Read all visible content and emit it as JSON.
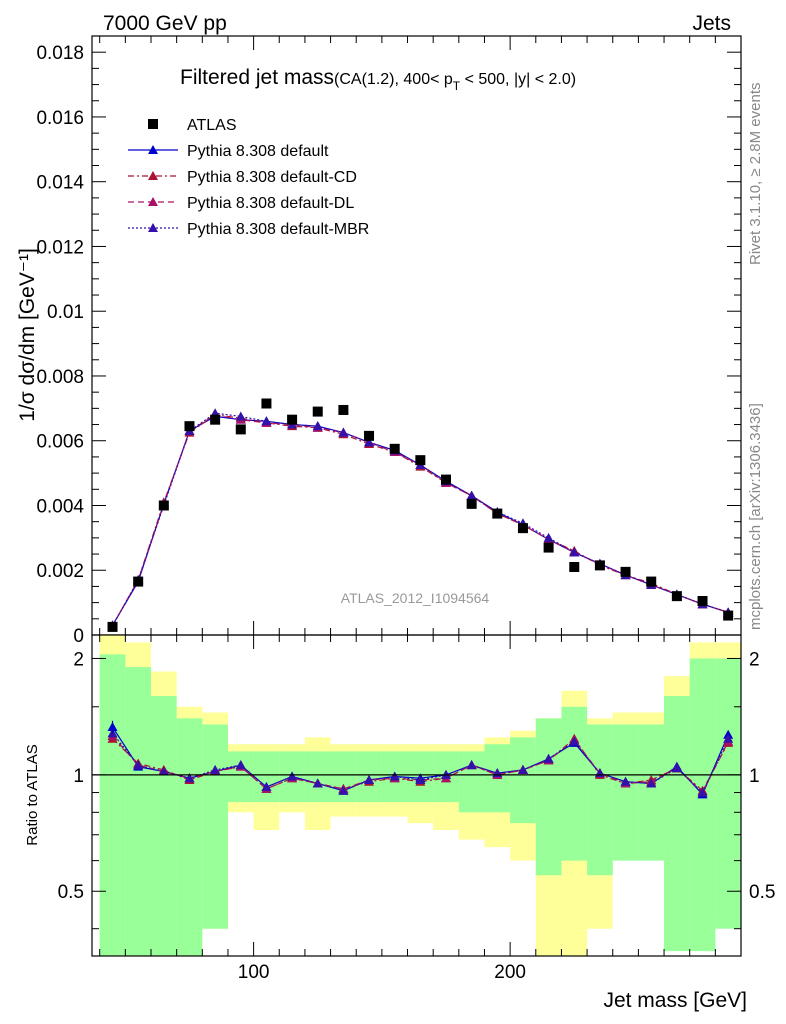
{
  "header": {
    "left_label": "7000 GeV pp",
    "right_label": "Jets"
  },
  "side_labels": {
    "rivet": "Rivet 3.1.10, ≥ 2.8M events",
    "mcplots": "mcplots.cern.ch [arXiv:1306.3436]"
  },
  "chart_data": [
    {
      "type": "scatter",
      "panel": "main",
      "title_main": "Filtered jet mass",
      "title_sub": "(CA(1.2), 400< p",
      "title_sub_index": "T",
      "title_sub_tail": " < 500, |y| < 2.0)",
      "ylabel": "1/σ dσ/dm [GeV⁻¹]",
      "xlabel": "Jet mass [GeV]",
      "watermark": "ATLAS_2012_I1094564",
      "xlim": [
        37,
        290
      ],
      "ylim": [
        0,
        0.0185
      ],
      "x_ticks": [
        100,
        200
      ],
      "y_ticks": [
        0,
        0.002,
        0.004,
        0.006,
        0.008,
        0.01,
        0.012,
        0.014,
        0.016,
        0.018
      ],
      "y_tick_labels": [
        "0",
        "0.002",
        "0.004",
        "0.006",
        "0.008",
        "0.01",
        "0.012",
        "0.014",
        "0.016",
        "0.018"
      ],
      "legend_placement": "top-left",
      "x": [
        45,
        55,
        65,
        75,
        85,
        95,
        105,
        115,
        125,
        135,
        145,
        155,
        165,
        175,
        185,
        195,
        205,
        215,
        225,
        235,
        245,
        255,
        265,
        275,
        285
      ],
      "series": [
        {
          "name": "ATLAS",
          "style": "data",
          "color": "#000000",
          "values": [
            0.00025,
            0.00165,
            0.004,
            0.00645,
            0.00665,
            0.00635,
            0.00715,
            0.00665,
            0.0069,
            0.00695,
            0.00615,
            0.00575,
            0.0054,
            0.0048,
            0.00405,
            0.00375,
            0.0033,
            0.0027,
            0.0021,
            0.00215,
            0.00195,
            0.00165,
            0.0012,
            0.00105,
            0.0006
          ]
        },
        {
          "name": "Pythia 8.308 default",
          "style": "solid",
          "color": "#0000cc",
          "values": [
            0.0003,
            0.00165,
            0.00405,
            0.0063,
            0.00675,
            0.00665,
            0.0066,
            0.0065,
            0.00645,
            0.00625,
            0.00595,
            0.0057,
            0.00525,
            0.00475,
            0.0043,
            0.0038,
            0.0034,
            0.00295,
            0.00255,
            0.0022,
            0.00185,
            0.00155,
            0.00125,
            0.00095,
            0.0007
          ]
        },
        {
          "name": "Pythia 8.308 default-CD",
          "style": "dashdot",
          "color": "#aa1133",
          "values": [
            0.00028,
            0.0017,
            0.0041,
            0.00625,
            0.0068,
            0.0067,
            0.00655,
            0.00645,
            0.0064,
            0.0062,
            0.0059,
            0.00565,
            0.0052,
            0.0047,
            0.0043,
            0.00375,
            0.0034,
            0.00295,
            0.0026,
            0.00215,
            0.00185,
            0.0016,
            0.00125,
            0.00095,
            0.0007
          ]
        },
        {
          "name": "Pythia 8.308 default-DL",
          "style": "dashed",
          "color": "#aa1166",
          "values": [
            0.00028,
            0.0017,
            0.00405,
            0.0063,
            0.0068,
            0.00665,
            0.00655,
            0.0065,
            0.0064,
            0.00625,
            0.00595,
            0.00565,
            0.00525,
            0.0047,
            0.0043,
            0.00375,
            0.0034,
            0.00295,
            0.00255,
            0.0022,
            0.00185,
            0.00155,
            0.00125,
            0.00095,
            0.0007
          ]
        },
        {
          "name": "Pythia 8.308 default-MBR",
          "style": "dotted",
          "color": "#3311aa",
          "values": [
            0.00028,
            0.0017,
            0.004,
            0.0063,
            0.00685,
            0.00675,
            0.0066,
            0.0065,
            0.00645,
            0.00625,
            0.00595,
            0.0057,
            0.00525,
            0.00475,
            0.0043,
            0.0038,
            0.00345,
            0.003,
            0.00255,
            0.0022,
            0.00185,
            0.00155,
            0.00125,
            0.00095,
            0.0007
          ]
        }
      ]
    },
    {
      "type": "line",
      "panel": "ratio",
      "ylabel": "Ratio to ATLAS",
      "xlabel": "Jet mass [GeV]",
      "xlim": [
        37,
        290
      ],
      "ylim": [
        0.34,
        2.3
      ],
      "y_ticks": [
        0.5,
        1,
        2
      ],
      "y_tick_labels": [
        "0.5",
        "1",
        "2"
      ],
      "x_ticks": [
        100,
        200
      ],
      "x_tick_labels": [
        "100",
        "200"
      ],
      "bins": [
        40,
        50,
        60,
        70,
        80,
        90,
        100,
        110,
        120,
        130,
        140,
        150,
        160,
        170,
        180,
        190,
        200,
        210,
        220,
        230,
        240,
        250,
        260,
        270,
        280,
        290
      ],
      "band_yellow": [
        [
          0.34,
          2.35
        ],
        [
          0.34,
          2.2
        ],
        [
          0.34,
          1.85
        ],
        [
          0.34,
          1.5
        ],
        [
          0.4,
          1.45
        ],
        [
          0.8,
          1.2
        ],
        [
          0.72,
          1.2
        ],
        [
          0.8,
          1.2
        ],
        [
          0.72,
          1.25
        ],
        [
          0.78,
          1.2
        ],
        [
          0.78,
          1.2
        ],
        [
          0.78,
          1.2
        ],
        [
          0.75,
          1.2
        ],
        [
          0.72,
          1.2
        ],
        [
          0.68,
          1.2
        ],
        [
          0.65,
          1.25
        ],
        [
          0.6,
          1.3
        ],
        [
          0.34,
          1.4
        ],
        [
          0.34,
          1.65
        ],
        [
          0.4,
          1.4
        ],
        [
          0.7,
          1.45
        ],
        [
          0.7,
          1.45
        ],
        [
          0.65,
          1.8
        ],
        [
          0.4,
          2.2
        ],
        [
          0.45,
          2.2
        ]
      ],
      "band_green": [
        [
          0.34,
          2.05
        ],
        [
          0.34,
          1.9
        ],
        [
          0.34,
          1.6
        ],
        [
          0.34,
          1.4
        ],
        [
          0.4,
          1.35
        ],
        [
          0.85,
          1.15
        ],
        [
          0.85,
          1.15
        ],
        [
          0.85,
          1.15
        ],
        [
          0.85,
          1.15
        ],
        [
          0.85,
          1.15
        ],
        [
          0.85,
          1.15
        ],
        [
          0.85,
          1.15
        ],
        [
          0.85,
          1.15
        ],
        [
          0.85,
          1.15
        ],
        [
          0.8,
          1.15
        ],
        [
          0.8,
          1.2
        ],
        [
          0.75,
          1.25
        ],
        [
          0.55,
          1.4
        ],
        [
          0.6,
          1.5
        ],
        [
          0.55,
          1.35
        ],
        [
          0.6,
          1.35
        ],
        [
          0.6,
          1.35
        ],
        [
          0.35,
          1.6
        ],
        [
          0.35,
          2.0
        ],
        [
          0.4,
          2.0
        ]
      ],
      "x": [
        45,
        55,
        65,
        75,
        85,
        95,
        105,
        115,
        125,
        135,
        145,
        155,
        165,
        175,
        185,
        195,
        205,
        215,
        225,
        235,
        245,
        255,
        265,
        275,
        285
      ],
      "series": [
        {
          "name": "Pythia 8.308 default",
          "color": "#0000cc",
          "values": [
            1.33,
            1.05,
            1.02,
            0.98,
            1.02,
            1.06,
            0.93,
            0.99,
            0.95,
            0.91,
            0.97,
            0.99,
            0.98,
            1.0,
            1.06,
            1.01,
            1.03,
            1.1,
            1.21,
            1.01,
            0.96,
            0.95,
            1.05,
            0.89,
            1.27
          ]
        },
        {
          "name": "Pythia 8.308 default-CD",
          "color": "#aa1133",
          "values": [
            1.24,
            1.07,
            1.03,
            0.97,
            1.02,
            1.05,
            0.92,
            0.98,
            0.95,
            0.92,
            0.96,
            0.98,
            0.96,
            0.98,
            1.06,
            1.0,
            1.03,
            1.09,
            1.24,
            1.0,
            0.95,
            0.97,
            1.04,
            0.91,
            1.21
          ]
        },
        {
          "name": "Pythia 8.308 default-DL",
          "color": "#aa1166",
          "values": [
            1.26,
            1.06,
            1.02,
            0.98,
            1.02,
            1.05,
            0.92,
            0.98,
            0.95,
            0.92,
            0.97,
            0.98,
            0.97,
            0.98,
            1.06,
            1.0,
            1.03,
            1.09,
            1.23,
            1.01,
            0.95,
            0.96,
            1.04,
            0.9,
            1.22
          ]
        },
        {
          "name": "Pythia 8.308 default-MBR",
          "color": "#3311aa",
          "values": [
            1.28,
            1.06,
            1.02,
            0.98,
            1.03,
            1.06,
            0.93,
            0.99,
            0.95,
            0.91,
            0.97,
            0.99,
            0.97,
            1.0,
            1.06,
            1.01,
            1.03,
            1.1,
            1.22,
            1.01,
            0.96,
            0.95,
            1.04,
            0.9,
            1.24
          ]
        }
      ]
    }
  ]
}
